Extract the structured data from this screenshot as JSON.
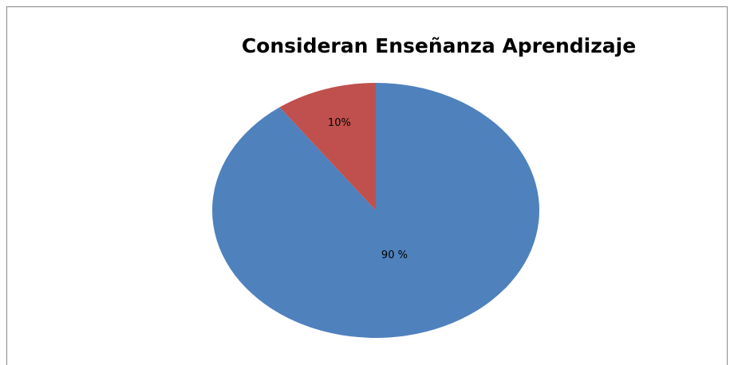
{
  "chart_data": {
    "type": "pie",
    "title": "Consideran Enseñanza Aprendizaje",
    "series": [
      {
        "values": [
          90,
          10
        ],
        "value_labels": [
          "90 %",
          "10%"
        ],
        "colors": [
          "#4f81bd",
          "#c0504d"
        ]
      }
    ]
  }
}
